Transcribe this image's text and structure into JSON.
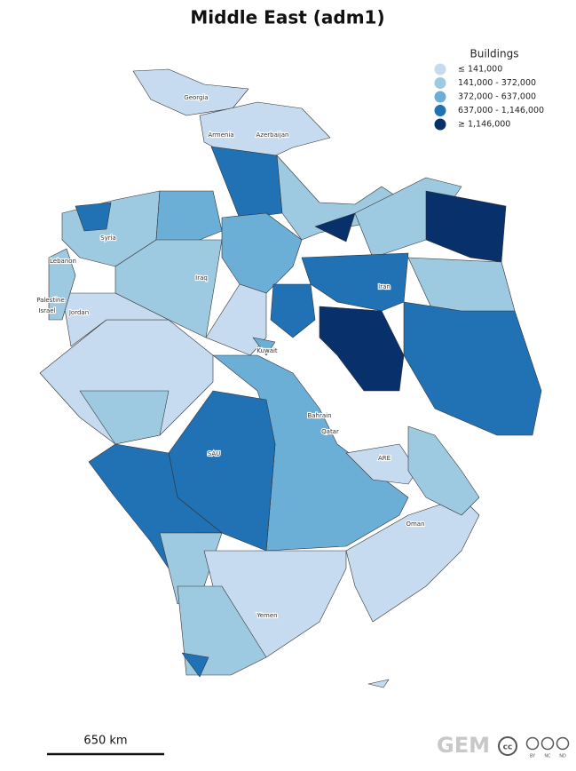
{
  "title": "Middle East (adm1)",
  "legend": {
    "title": "Buildings",
    "items": [
      {
        "label": "≤ 141,000",
        "color": "#c6dbef"
      },
      {
        "label": "141,000 - 372,000",
        "color": "#9ecae1"
      },
      {
        "label": "372,000 - 637,000",
        "color": "#6baed6"
      },
      {
        "label": "637,000 - 1,146,000",
        "color": "#2171b5"
      },
      {
        "label": "≥ 1,146,000",
        "color": "#08306b"
      }
    ]
  },
  "places": [
    "Georgia",
    "Armenia",
    "Azerbaijan",
    "Syria",
    "Lebanon",
    "Iraq",
    "Iran",
    "Palestine",
    "Israel",
    "Jordan",
    "Kuwait",
    "Bahrain",
    "Qatar",
    "ARE",
    "SAU",
    "Oman",
    "Yemen"
  ],
  "scale_bar": "650 km",
  "logo": "GEM",
  "license": {
    "mark": "cc",
    "terms": [
      "BY",
      "NC",
      "ND"
    ]
  }
}
